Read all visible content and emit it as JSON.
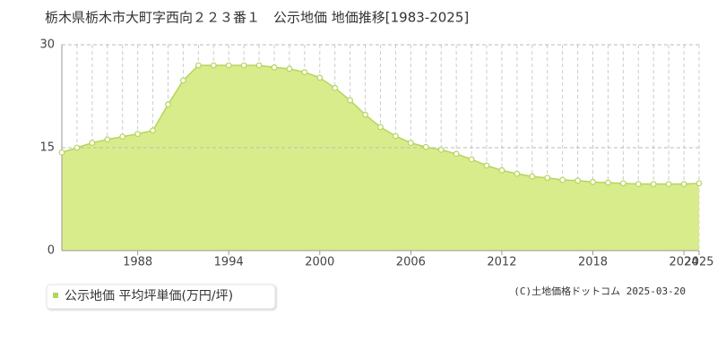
{
  "chart_data": {
    "type": "area",
    "title": "栃木県栃木市大町字西向２２３番１　公示地価 地価推移[1983-2025]",
    "x": [
      1983,
      1984,
      1985,
      1986,
      1987,
      1988,
      1989,
      1990,
      1991,
      1992,
      1993,
      1994,
      1995,
      1996,
      1997,
      1998,
      1999,
      2000,
      2001,
      2002,
      2003,
      2004,
      2005,
      2006,
      2007,
      2008,
      2009,
      2010,
      2011,
      2012,
      2013,
      2014,
      2015,
      2016,
      2017,
      2018,
      2019,
      2020,
      2021,
      2022,
      2023,
      2024,
      2025
    ],
    "series": [
      {
        "name": "公示地価 平均坪単価(万円/坪)",
        "color": "#b5d55a",
        "fill": "#d9ec8c",
        "values": [
          14.3,
          15.0,
          15.7,
          16.2,
          16.6,
          17.0,
          17.5,
          21.3,
          24.8,
          27.0,
          27.0,
          27.0,
          27.0,
          27.0,
          26.7,
          26.5,
          26.0,
          25.2,
          23.7,
          21.9,
          19.8,
          18.0,
          16.7,
          15.7,
          15.1,
          14.7,
          14.1,
          13.3,
          12.4,
          11.7,
          11.2,
          10.8,
          10.6,
          10.3,
          10.2,
          10.0,
          9.9,
          9.8,
          9.7,
          9.7,
          9.7,
          9.7,
          9.8
        ]
      }
    ],
    "xlim": [
      1983,
      2025
    ],
    "xticks": [
      1988,
      1994,
      2000,
      2006,
      2012,
      2018,
      2024,
      2025
    ],
    "ylim": [
      0,
      30
    ],
    "yticks": [
      0,
      15,
      30
    ],
    "grid": true,
    "copyright": "(C)土地価格ドットコム 2025-03-20"
  }
}
